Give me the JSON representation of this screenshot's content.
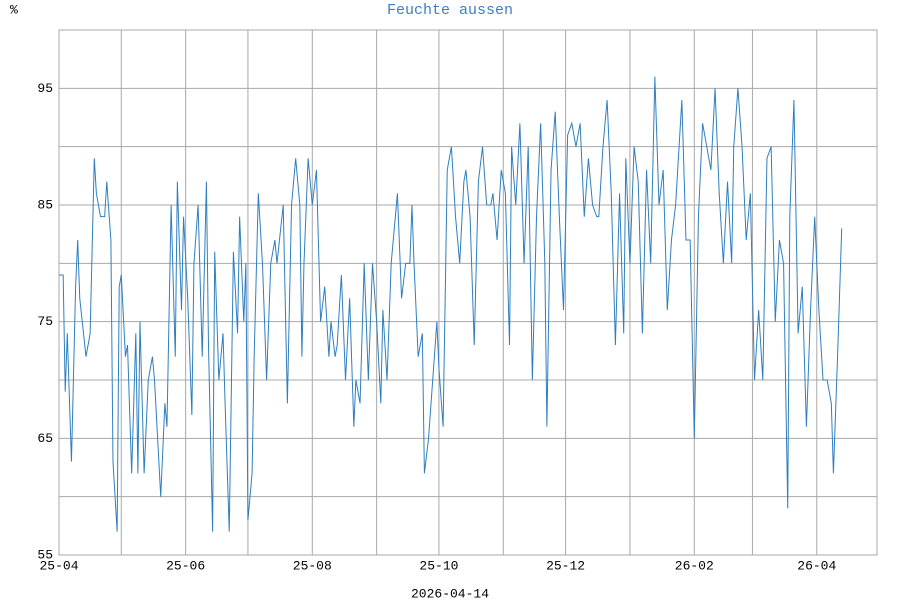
{
  "chart_data": {
    "type": "line",
    "title": "Feuchte aussen",
    "y_unit": "%",
    "x_label": "2026-04-14",
    "xlim": [
      0,
      394
    ],
    "xticks": [
      {
        "value": 0,
        "label": "25-04"
      },
      {
        "value": 61,
        "label": "25-06"
      },
      {
        "value": 122,
        "label": "25-08"
      },
      {
        "value": 183,
        "label": "25-10"
      },
      {
        "value": 244,
        "label": "25-12"
      },
      {
        "value": 306,
        "label": "26-02"
      },
      {
        "value": 365,
        "label": "26-04"
      }
    ],
    "xminor": [
      30,
      91,
      153,
      214,
      275,
      334
    ],
    "ylim": [
      55,
      100
    ],
    "yticks": [
      55,
      65,
      75,
      85,
      95
    ],
    "yminor": [
      60,
      70,
      80,
      90,
      100
    ],
    "grid": true,
    "series": [
      {
        "color": "#2f7fc0",
        "x": [
          0,
          2,
          3,
          4,
          6,
          8,
          9,
          10,
          13,
          15,
          17,
          18,
          20,
          22,
          23,
          25,
          26,
          28,
          29,
          30,
          32,
          33,
          35,
          37,
          38,
          39,
          41,
          43,
          45,
          46,
          49,
          51,
          52,
          54,
          56,
          57,
          59,
          60,
          62,
          64,
          65,
          67,
          69,
          71,
          72,
          74,
          75,
          77,
          79,
          80,
          82,
          84,
          86,
          87,
          89,
          90,
          91,
          93,
          94,
          96,
          98,
          100,
          102,
          104,
          105,
          108,
          110,
          112,
          114,
          116,
          117,
          118,
          120,
          122,
          124,
          126,
          128,
          130,
          131,
          133,
          134,
          136,
          138,
          140,
          142,
          143,
          145,
          147,
          149,
          151,
          153,
          155,
          156,
          158,
          160,
          162,
          163,
          165,
          167,
          169,
          170,
          171,
          173,
          175,
          176,
          178,
          180,
          182,
          183,
          185,
          187,
          189,
          191,
          193,
          195,
          196,
          198,
          200,
          202,
          204,
          206,
          208,
          209,
          211,
          213,
          215,
          217,
          218,
          220,
          222,
          224,
          226,
          228,
          230,
          232,
          234,
          235,
          237,
          239,
          241,
          243,
          245,
          247,
          249,
          251,
          253,
          255,
          257,
          259,
          260,
          262,
          264,
          266,
          268,
          270,
          272,
          273,
          275,
          277,
          279,
          281,
          283,
          285,
          287,
          289,
          291,
          293,
          295,
          297,
          299,
          300,
          302,
          304,
          306,
          308,
          310,
          312,
          314,
          316,
          318,
          320,
          322,
          324,
          325,
          327,
          329,
          331,
          333,
          335,
          337,
          339,
          341,
          343,
          345,
          347,
          349,
          351,
          352,
          354,
          356,
          358,
          360,
          362,
          364,
          366,
          368,
          370,
          372,
          373,
          375,
          377
        ],
        "values": [
          79,
          79,
          69,
          74,
          63,
          78,
          82,
          77,
          72,
          74,
          89,
          86,
          84,
          84,
          87,
          82,
          63,
          57,
          78,
          79,
          72,
          73,
          62,
          74,
          62,
          75,
          62,
          70,
          72,
          70,
          60,
          68,
          66,
          85,
          72,
          87,
          76,
          84,
          77,
          67,
          80,
          85,
          72,
          87,
          73,
          57,
          81,
          70,
          74,
          68,
          57,
          81,
          74,
          84,
          75,
          80,
          58,
          62,
          72,
          86,
          80,
          70,
          80,
          82,
          80,
          85,
          68,
          85,
          89,
          85,
          72,
          80,
          89,
          85,
          88,
          75,
          78,
          72,
          75,
          72,
          73,
          79,
          70,
          77,
          66,
          70,
          68,
          80,
          70,
          80,
          75,
          68,
          76,
          70,
          80,
          84,
          86,
          77,
          80,
          80,
          85,
          80,
          72,
          74,
          62,
          65,
          70,
          75,
          71,
          66,
          88,
          90,
          84,
          80,
          87,
          88,
          84,
          73,
          87,
          90,
          85,
          85,
          86,
          82,
          88,
          86,
          73,
          90,
          85,
          92,
          80,
          90,
          70,
          84,
          92,
          80,
          66,
          88,
          93,
          84,
          76,
          91,
          92,
          90,
          92,
          84,
          89,
          85,
          84,
          84,
          90,
          94,
          86,
          73,
          86,
          74,
          89,
          80,
          90,
          87,
          74,
          88,
          80,
          96,
          85,
          88,
          76,
          82,
          85,
          91,
          94,
          82,
          82,
          65,
          84,
          92,
          90,
          88,
          95,
          86,
          80,
          87,
          80,
          90,
          95,
          90,
          82,
          86,
          70,
          76,
          70,
          89,
          90,
          75,
          82,
          80,
          59,
          84,
          94,
          74,
          78,
          66,
          76,
          84,
          76,
          70,
          70,
          68,
          62,
          72,
          83
        ]
      }
    ]
  }
}
